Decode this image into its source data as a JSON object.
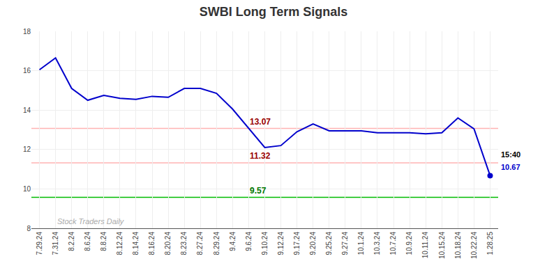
{
  "chart_data": {
    "type": "line",
    "title": "SWBI Long Term Signals",
    "categories": [
      "7.29.24",
      "7.31.24",
      "8.2.24",
      "8.6.24",
      "8.8.24",
      "8.12.24",
      "8.14.24",
      "8.16.24",
      "8.20.24",
      "8.23.24",
      "8.27.24",
      "8.29.24",
      "9.4.24",
      "9.6.24",
      "9.10.24",
      "9.12.24",
      "9.17.24",
      "9.20.24",
      "9.25.24",
      "9.27.24",
      "10.1.24",
      "10.3.24",
      "10.7.24",
      "10.9.24",
      "10.11.24",
      "10.15.24",
      "10.18.24",
      "10.22.24",
      "1.28.25"
    ],
    "values": [
      16.05,
      16.65,
      15.1,
      14.5,
      14.75,
      14.6,
      14.55,
      14.7,
      14.65,
      15.1,
      15.1,
      14.85,
      14.05,
      13.07,
      12.1,
      12.2,
      12.9,
      13.3,
      12.95,
      12.95,
      12.95,
      12.85,
      12.85,
      12.85,
      12.8,
      12.85,
      13.6,
      13.05,
      10.67
    ],
    "color": "#0000cc",
    "marker": "circle",
    "ylim": [
      8,
      18
    ],
    "yticks": [
      8,
      10,
      12,
      14,
      16,
      18
    ],
    "grid": true,
    "hlines": [
      {
        "value": 13.07,
        "label": "13.07",
        "color": "#ffb3b3",
        "label_color": "#990000",
        "x": "9.6.24"
      },
      {
        "value": 11.32,
        "label": "11.32",
        "color": "#ffb3b3",
        "label_color": "#990000",
        "x": "9.6.24"
      },
      {
        "value": 9.57,
        "label": "9.57",
        "color": "#00bb00",
        "label_color": "#007700",
        "x": "9.6.24"
      }
    ],
    "annotations": [
      {
        "text": "15:40",
        "x": "1.28.25",
        "y": 10.67,
        "color": "#000000"
      },
      {
        "text": "10.67",
        "x": "1.28.25",
        "y": 10.67,
        "color": "#0000cc"
      },
      {
        "text": "Stock Traders Daily",
        "x": "7.31.24",
        "y": 8,
        "color": "#aaaaaa"
      }
    ]
  }
}
